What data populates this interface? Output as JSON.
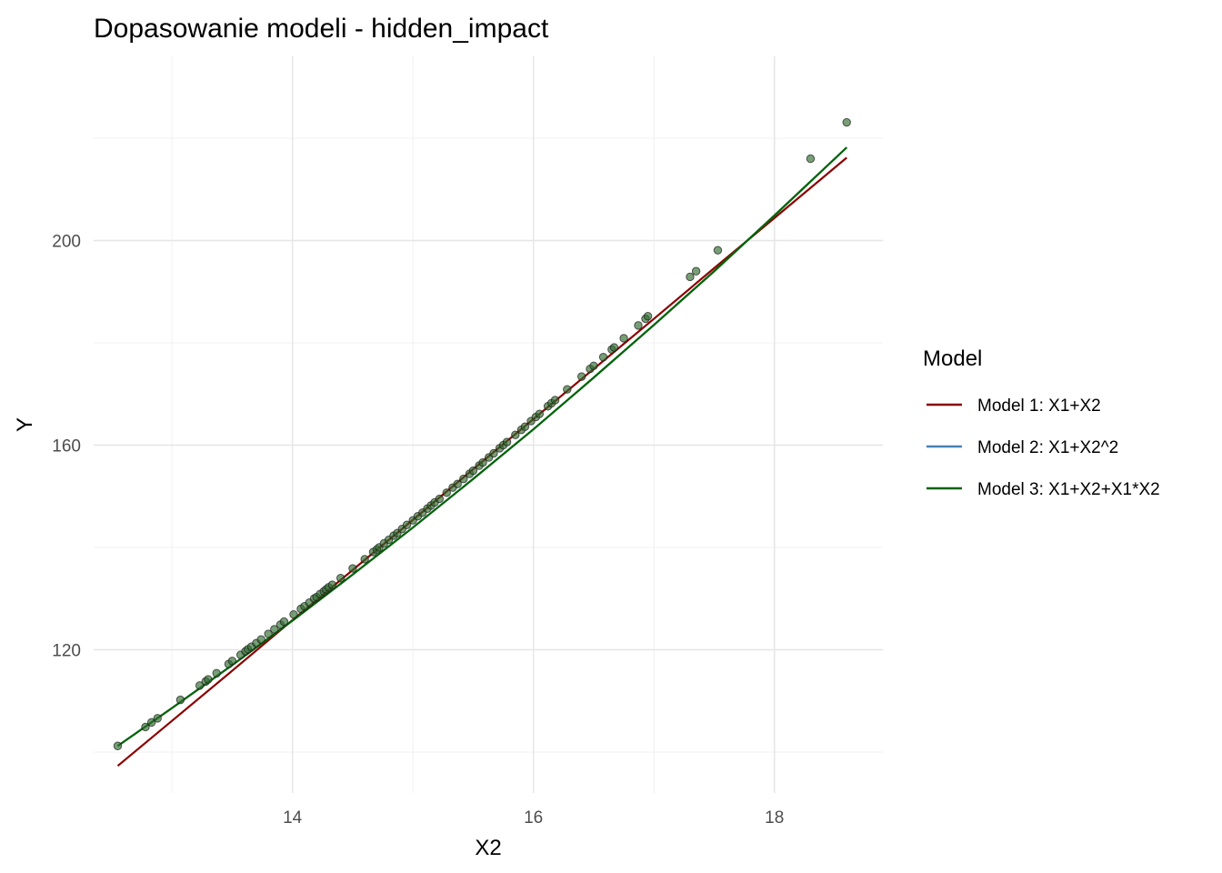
{
  "chart_data": {
    "type": "scatter",
    "title": "Dopasowanie modeli - hidden_impact",
    "xlabel": "X2",
    "ylabel": "Y",
    "xlim": [
      12.35,
      18.9
    ],
    "ylim": [
      92,
      236
    ],
    "x_ticks": [
      14,
      16,
      18
    ],
    "y_ticks": [
      120,
      160,
      200
    ],
    "grid": true,
    "legend": {
      "title": "Model",
      "position": "right",
      "entries": [
        {
          "label": "Model 1: X1+X2",
          "color": "#8b0000"
        },
        {
          "label": "Model 2: X1+X2^2",
          "color": "#4682b4"
        },
        {
          "label": "Model 3: X1+X2+X1*X2",
          "color": "#006400"
        }
      ]
    },
    "series": [
      {
        "name": "Model 1: X1+X2",
        "kind": "line",
        "color": "#8b0000",
        "x": [
          12.55,
          13.0,
          13.5,
          14.0,
          14.5,
          15.0,
          15.5,
          16.0,
          16.5,
          17.0,
          17.5,
          18.0,
          18.6
        ],
        "y": [
          97.3,
          106.1,
          115.9,
          125.8,
          135.6,
          145.4,
          155.3,
          165.1,
          174.9,
          184.7,
          194.6,
          204.4,
          216.2
        ]
      },
      {
        "name": "Model 2: X1+X2^2",
        "kind": "line",
        "color": "#4682b4",
        "x": [
          12.55,
          13.0,
          13.5,
          14.0,
          14.5,
          15.0,
          15.5,
          16.0,
          16.5,
          17.0,
          17.5,
          18.0,
          18.6
        ],
        "y": [
          101.2,
          108.6,
          117.0,
          125.7,
          134.7,
          143.9,
          153.4,
          163.1,
          173.2,
          183.5,
          194.0,
          204.9,
          218.2
        ]
      },
      {
        "name": "Model 3: X1+X2+X1*X2",
        "kind": "line",
        "color": "#006400",
        "x": [
          12.55,
          13.0,
          13.5,
          14.0,
          14.5,
          15.0,
          15.5,
          16.0,
          16.5,
          17.0,
          17.5,
          18.0,
          18.6
        ],
        "y": [
          101.2,
          108.6,
          117.0,
          125.7,
          134.7,
          143.9,
          153.4,
          163.1,
          173.2,
          183.5,
          194.0,
          204.9,
          218.2
        ]
      },
      {
        "name": "",
        "kind": "points",
        "color": "#2e6b2e",
        "x": [
          12.55,
          12.78,
          12.83,
          12.88,
          13.07,
          13.23,
          13.28,
          13.3,
          13.37,
          13.47,
          13.5,
          13.57,
          13.61,
          13.63,
          13.66,
          13.7,
          13.74,
          13.8,
          13.85,
          13.9,
          13.93,
          14.01,
          14.07,
          14.1,
          14.14,
          14.18,
          14.2,
          14.23,
          14.26,
          14.28,
          14.3,
          14.33,
          14.4,
          14.5,
          14.6,
          14.67,
          14.7,
          14.72,
          14.76,
          14.8,
          14.84,
          14.87,
          14.91,
          14.95,
          15.0,
          15.04,
          15.08,
          15.12,
          15.15,
          15.18,
          15.22,
          15.28,
          15.33,
          15.37,
          15.42,
          15.47,
          15.5,
          15.55,
          15.58,
          15.63,
          15.67,
          15.72,
          15.75,
          15.78,
          15.85,
          15.9,
          15.93,
          15.98,
          16.02,
          16.05,
          16.12,
          16.15,
          16.18,
          16.28,
          16.4,
          16.47,
          16.5,
          16.58,
          16.65,
          16.67,
          16.75,
          16.87,
          16.93,
          16.95,
          17.3,
          17.35,
          17.53,
          18.3,
          18.6
        ],
        "y": [
          101.2,
          104.9,
          105.8,
          106.6,
          110.2,
          113.0,
          113.8,
          114.2,
          115.4,
          117.2,
          117.8,
          119.0,
          119.7,
          120.1,
          120.6,
          121.3,
          122.0,
          123.1,
          124.0,
          124.9,
          125.5,
          126.9,
          128.0,
          128.5,
          129.2,
          130.0,
          130.3,
          130.9,
          131.4,
          131.8,
          132.2,
          132.7,
          134.0,
          135.9,
          137.7,
          139.1,
          139.6,
          140.0,
          140.8,
          141.5,
          142.3,
          142.8,
          143.6,
          144.4,
          145.3,
          146.1,
          146.8,
          147.6,
          148.2,
          148.8,
          149.5,
          150.7,
          151.7,
          152.4,
          153.4,
          154.4,
          155.0,
          156.0,
          156.6,
          157.6,
          158.4,
          159.4,
          160.0,
          160.6,
          162.0,
          163.0,
          163.6,
          164.7,
          165.5,
          166.1,
          167.6,
          168.2,
          168.8,
          170.9,
          173.4,
          174.9,
          175.5,
          177.2,
          178.7,
          179.1,
          180.9,
          183.4,
          184.7,
          185.2,
          192.9,
          194.0,
          198.1,
          216.0,
          223.1
        ]
      }
    ]
  }
}
